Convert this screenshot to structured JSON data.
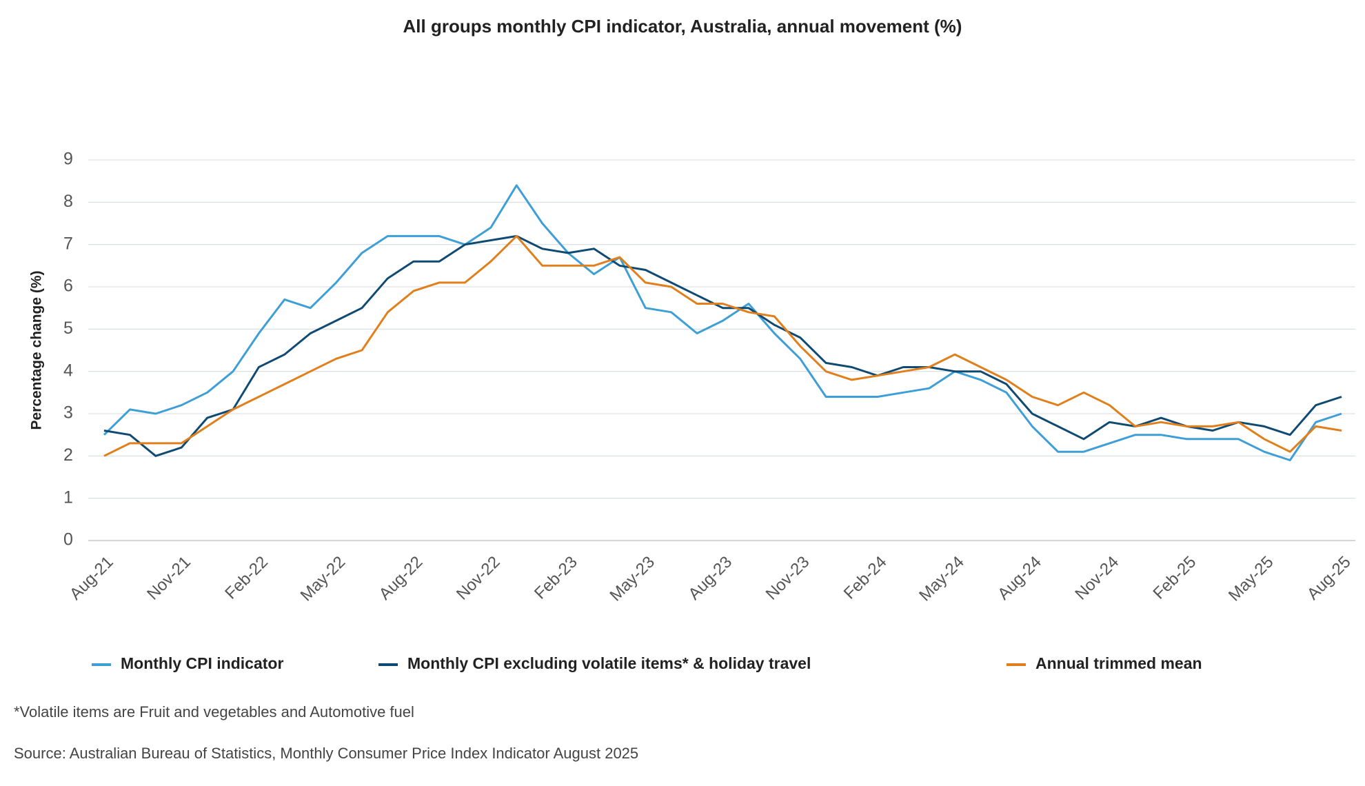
{
  "chart_data": {
    "type": "line",
    "title": "All groups monthly CPI indicator, Australia, annual movement (%)",
    "y_label": "Percentage change (%)",
    "categories": [
      "Aug-21",
      null,
      null,
      "Nov-21",
      null,
      null,
      "Feb-22",
      null,
      null,
      "May-22",
      null,
      null,
      "Aug-22",
      null,
      null,
      "Nov-22",
      null,
      null,
      "Feb-23",
      null,
      null,
      "May-23",
      null,
      null,
      "Aug-23",
      null,
      null,
      "Nov-23",
      null,
      null,
      "Feb-24",
      null,
      null,
      "May-24",
      null,
      null,
      "Aug-24",
      null,
      null,
      "Nov-24",
      null,
      null,
      "Feb-25",
      null,
      null,
      "May-25",
      null,
      null,
      "Aug-25"
    ],
    "series": [
      {
        "name": "Monthly CPI indicator",
        "color": "#3d9fd6",
        "values": [
          2.5,
          3.1,
          3.0,
          3.2,
          3.5,
          4.0,
          4.9,
          5.7,
          5.5,
          6.1,
          6.8,
          7.2,
          7.2,
          7.2,
          7.0,
          7.4,
          8.4,
          7.5,
          6.8,
          6.3,
          6.7,
          5.5,
          5.4,
          4.9,
          5.2,
          5.6,
          4.9,
          4.3,
          3.4,
          3.4,
          3.4,
          3.5,
          3.6,
          4.0,
          3.8,
          3.5,
          2.7,
          2.1,
          2.1,
          2.3,
          2.5,
          2.5,
          2.4,
          2.4,
          2.4,
          2.1,
          1.9,
          2.8,
          3.0
        ]
      },
      {
        "name": "Monthly CPI excluding volatile items* & holiday travel",
        "color": "#0f4a72",
        "values": [
          2.6,
          2.5,
          2.0,
          2.2,
          2.9,
          3.1,
          4.1,
          4.4,
          4.9,
          5.2,
          5.5,
          6.2,
          6.6,
          6.6,
          7.0,
          7.1,
          7.2,
          6.9,
          6.8,
          6.9,
          6.5,
          6.4,
          6.1,
          5.8,
          5.5,
          5.5,
          5.1,
          4.8,
          4.2,
          4.1,
          3.9,
          4.1,
          4.1,
          4.0,
          4.0,
          3.7,
          3.0,
          2.7,
          2.4,
          2.8,
          2.7,
          2.9,
          2.7,
          2.6,
          2.8,
          2.7,
          2.5,
          3.2,
          3.4
        ]
      },
      {
        "name": "Annual trimmed mean",
        "color": "#e07f1b",
        "values": [
          2.0,
          2.3,
          2.3,
          2.3,
          2.7,
          3.1,
          3.4,
          3.7,
          4.0,
          4.3,
          4.5,
          5.4,
          5.9,
          6.1,
          6.1,
          6.6,
          7.2,
          6.5,
          6.5,
          6.5,
          6.7,
          6.1,
          6.0,
          5.6,
          5.6,
          5.4,
          5.3,
          4.6,
          4.0,
          3.8,
          3.9,
          4.0,
          4.1,
          4.4,
          4.1,
          3.8,
          3.4,
          3.2,
          3.5,
          3.2,
          2.7,
          2.8,
          2.7,
          2.7,
          2.8,
          2.4,
          2.1,
          2.7,
          2.6
        ]
      }
    ],
    "ylim": [
      0,
      9
    ],
    "yticks": [
      0,
      1,
      2,
      3,
      4,
      5,
      6,
      7,
      8,
      9
    ],
    "grid": true,
    "footnote": "*Volatile items are Fruit and vegetables and Automotive fuel",
    "source": "Source: Australian Bureau of Statistics, Monthly Consumer Price Index Indicator August 2025"
  }
}
